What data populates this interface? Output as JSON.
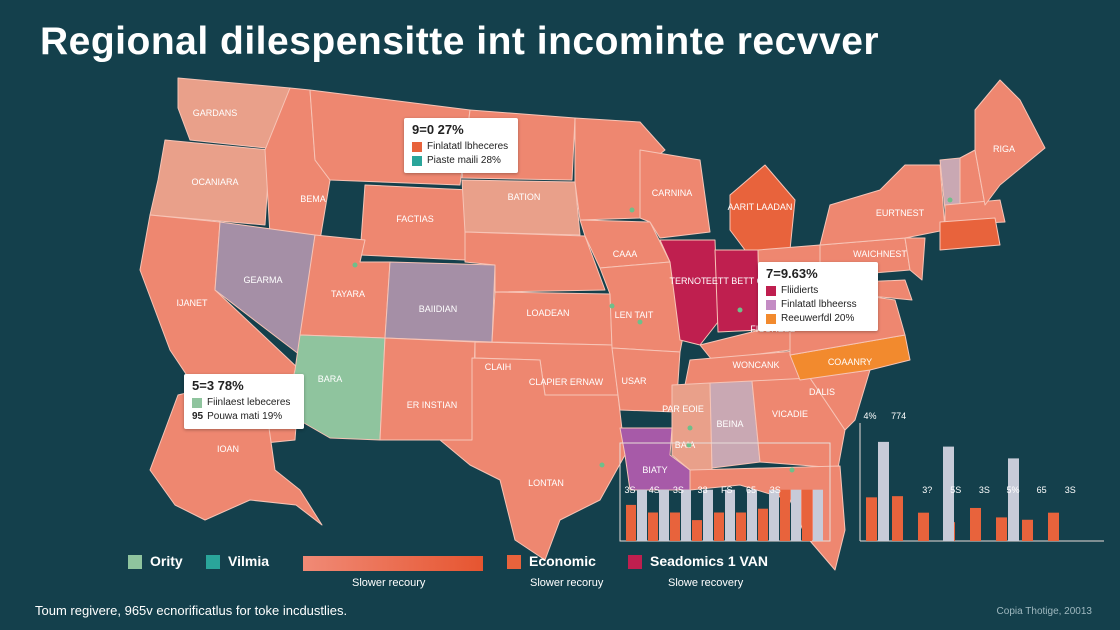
{
  "title": "Regional dilespensitte int incominte recvver",
  "map": {
    "colors": {
      "base": "#ee8770",
      "light": "#e9a08a",
      "lavender": "#a58fa6",
      "green": "#8fc49e",
      "crimson": "#bf1f4f",
      "orange": "#e8633c",
      "amber": "#f28a2e",
      "purple": "#a75aa8",
      "pale": "#c9a8b3"
    },
    "state_labels": [
      {
        "text": "GARDANS"
      },
      {
        "text": "OCANIARA"
      },
      {
        "text": "BEMA"
      },
      {
        "text": "FACTIAS"
      },
      {
        "text": "BATION"
      },
      {
        "text": "GEARMA"
      },
      {
        "text": "TAYARA"
      },
      {
        "text": "BAIIDIAN"
      },
      {
        "text": "LOADEAN"
      },
      {
        "text": "IJANET"
      },
      {
        "text": "BARA"
      },
      {
        "text": "ER INSTIAN"
      },
      {
        "text": "CLAIH"
      },
      {
        "text": "CLAPIER ERNAW"
      },
      {
        "text": "USAR"
      },
      {
        "text": "IOAN"
      },
      {
        "text": "LONTAN"
      },
      {
        "text": "CAAA"
      },
      {
        "text": "LEN TAIT"
      },
      {
        "text": "CARNINA"
      },
      {
        "text": "TERNOT"
      },
      {
        "text": "EETT BETT OR"
      },
      {
        "text": "AARIT LAADAN"
      },
      {
        "text": "FICURESS"
      },
      {
        "text": "WONCANK"
      },
      {
        "text": "COAANRY"
      },
      {
        "text": "DALIS"
      },
      {
        "text": "VICADIE"
      },
      {
        "text": "PAR EOIE"
      },
      {
        "text": "BEINA"
      },
      {
        "text": "BAIA"
      },
      {
        "text": "BIATY"
      },
      {
        "text": "RIGA"
      },
      {
        "text": "EURTNEST"
      },
      {
        "text": "WAICHNEST"
      }
    ],
    "dot_color": "#6fbf8a"
  },
  "callouts": [
    {
      "id": "north",
      "percent": "9=0 27%",
      "items": [
        {
          "color": "#e8633c",
          "label": "Finlatatl lbheceres"
        },
        {
          "color": "#2aa59a",
          "label": "Piaste maili 28%"
        }
      ]
    },
    {
      "id": "midwest",
      "percent": "7=9.63%",
      "items": [
        {
          "color": "#bf1f4f",
          "label": "Fliidierts"
        },
        {
          "color": "#c48cc4",
          "label": "Finlatatl lbheerss"
        },
        {
          "color": "#f28a2e",
          "label": "Reeuwerfdl 20%"
        }
      ]
    },
    {
      "id": "west",
      "percent": "5=3 78%",
      "items": [
        {
          "color": "#8fc49e",
          "label": "Fiinlaest lebeceres"
        },
        {
          "color": "",
          "prefix": "95",
          "label": "Pouwa mati 19%"
        }
      ]
    }
  ],
  "chart_data": [
    {
      "type": "bar",
      "series": [
        {
          "values": [
            38,
            30,
            30,
            22,
            30,
            30,
            34,
            54,
            54
          ]
        },
        {
          "values": [
            54,
            54,
            54,
            54,
            54,
            54,
            54,
            54,
            54
          ]
        }
      ],
      "data_labels": [
        "3S",
        "4S",
        "3S",
        "33",
        "FS",
        "65",
        "3S"
      ],
      "ylim": [
        0,
        100
      ]
    },
    {
      "type": "bar",
      "series": [
        {
          "values": [
            37,
            38,
            24,
            16,
            28,
            20,
            18,
            24
          ]
        },
        {
          "values": [
            84,
            80,
            70
          ]
        }
      ],
      "data_labels": [
        "4%",
        "774",
        "3?",
        "5S",
        "3S",
        "5%",
        "65",
        "3S"
      ],
      "ylim": [
        0,
        100
      ]
    }
  ],
  "legend": {
    "items": [
      {
        "color": "#8fc49e",
        "label": "Ority"
      },
      {
        "color": "#2aa59a",
        "label": "Vilmia"
      },
      {
        "color": "#e8633c",
        "label": "Economic"
      },
      {
        "color": "#bf1f4f",
        "label": "Seadomics  1 VAN"
      }
    ],
    "gradient": {
      "from": "#f08a76",
      "to": "#e65530"
    },
    "subtitles": [
      "Slower recoury",
      "Slower recoruy",
      "Slowe recovery"
    ]
  },
  "footer": {
    "note": "Toum regivere, 965v ecnorificatlus for toke incdustlies.",
    "credit": "Copia Thotige, 20013"
  }
}
